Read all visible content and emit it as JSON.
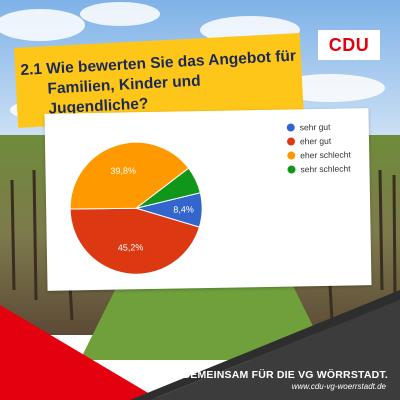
{
  "logo": {
    "text": "CDU"
  },
  "question": {
    "line1": "2.1 Wie bewerten Sie das Angebot für",
    "line2": "Familien, Kinder und Jugendliche?"
  },
  "footer": {
    "slogan": "GEMEINSAM FÜR DIE VG WÖRRSTADT.",
    "url": "www.cdu-vg-woerrstadt.de"
  },
  "colors": {
    "cdu_red": "#e3000f",
    "banner_yellow": "#ffc61a",
    "banner_text": "#1a2a55",
    "dark_band": "#3c3c3c"
  },
  "chart_data": {
    "type": "pie",
    "title": "",
    "legend_position": "right",
    "slices": [
      {
        "label": "sehr gut",
        "value": 8.4,
        "display": "8,4",
        "color": "#3366cc"
      },
      {
        "label": "eher gut",
        "value": 45.2,
        "display": "45,2",
        "color": "#dc3912"
      },
      {
        "label": "eher schlecht",
        "value": 39.8,
        "display": "39,8",
        "color": "#ff9900"
      },
      {
        "label": "sehr schlecht",
        "value": 6.6,
        "display": "",
        "color": "#109618"
      }
    ]
  }
}
